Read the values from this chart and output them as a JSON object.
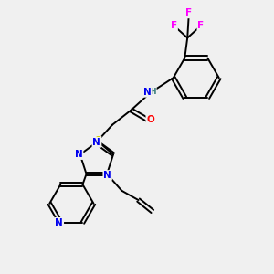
{
  "background_color": "#f0f0f0",
  "atom_colors": {
    "N": "#0000ee",
    "O": "#ff0000",
    "S": "#cccc00",
    "F": "#ff00ff",
    "C": "#000000",
    "H": "#408080"
  },
  "bond_color": "#000000",
  "figsize": [
    3.0,
    3.0
  ],
  "dpi": 100
}
